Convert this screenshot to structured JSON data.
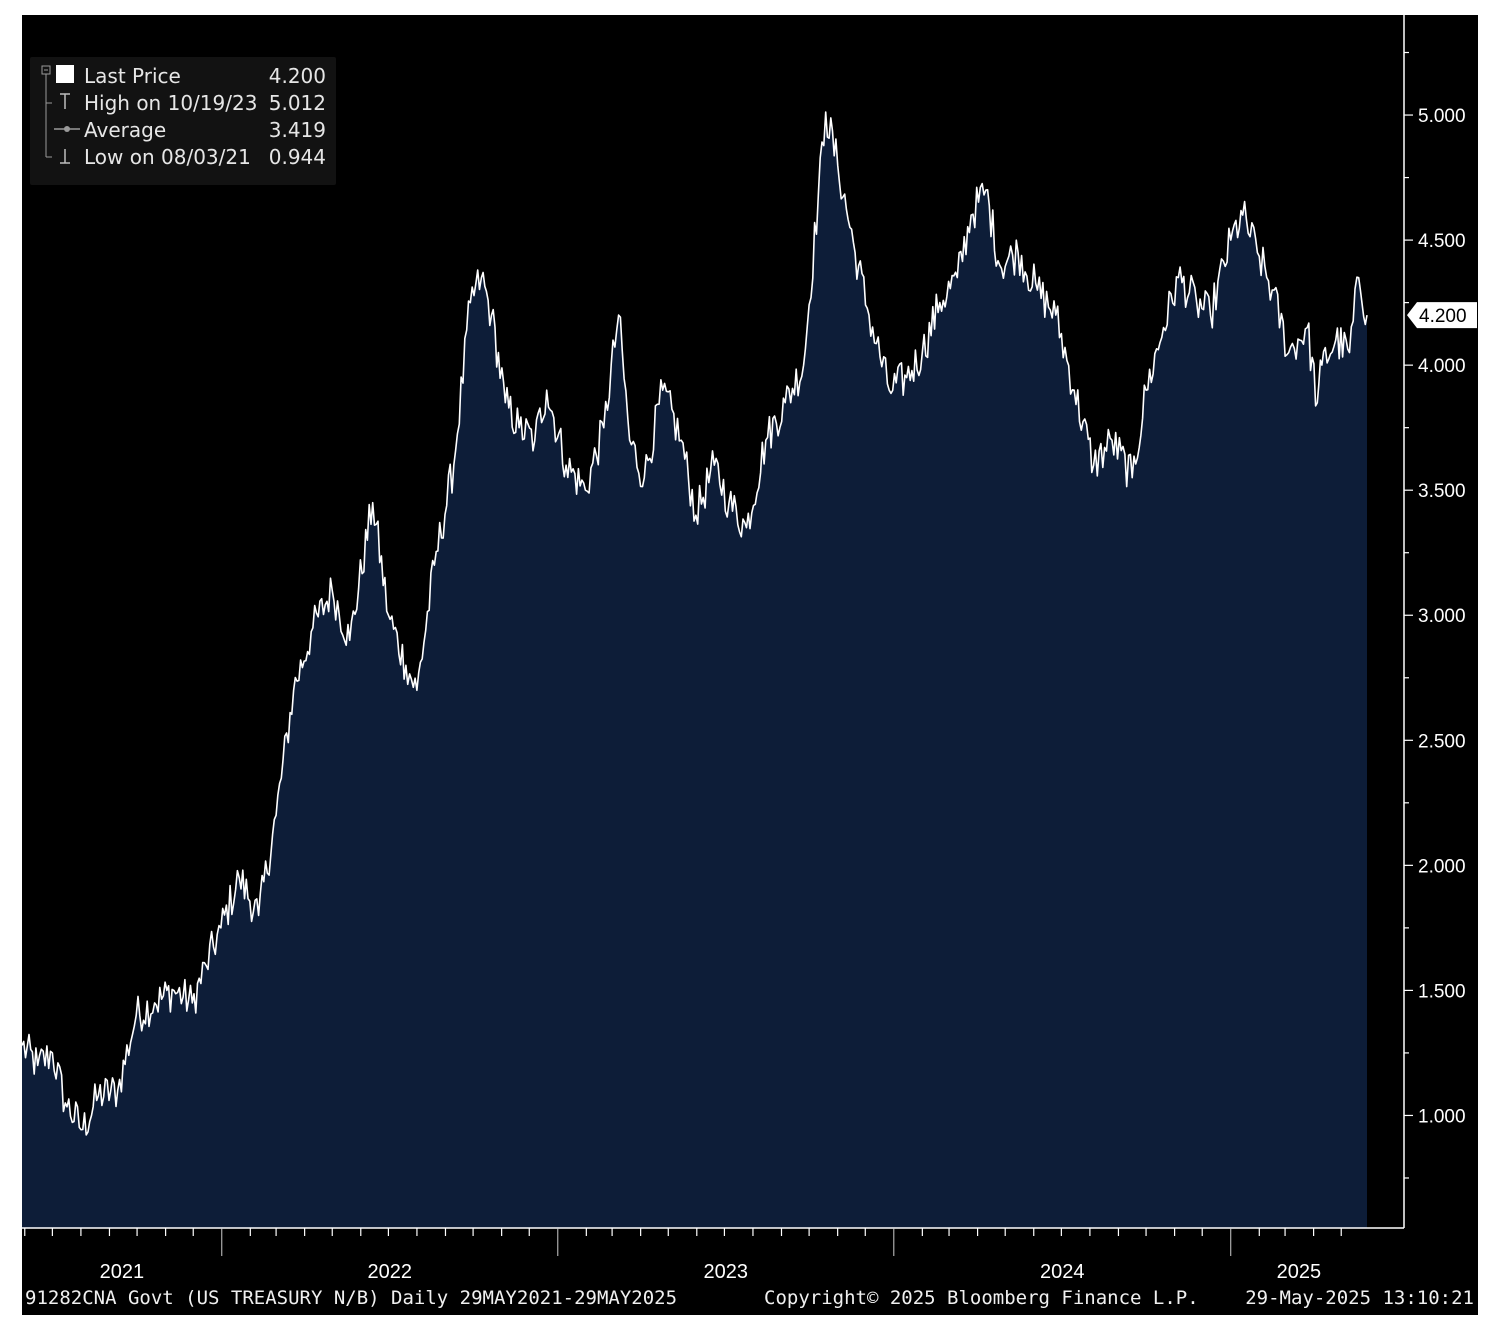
{
  "legend": {
    "items": [
      {
        "label": "Last Price",
        "value": "4.200",
        "icon": "filled-square-icon"
      },
      {
        "label": "High on 10/19/23",
        "value": "5.012",
        "icon": "high-marker-icon"
      },
      {
        "label": "Average",
        "value": "3.419",
        "icon": "average-line-icon"
      },
      {
        "label": "Low on 08/03/21",
        "value": "0.944",
        "icon": "low-marker-icon"
      }
    ]
  },
  "last_price_tag": "4.200",
  "footer": {
    "left": "91282CNA Govt (US TREASURY N/B)  Daily 29MAY2021-29MAY2025",
    "center": "Copyright© 2025 Bloomberg Finance L.P.",
    "right": "29-May-2025 13:10:21"
  },
  "colors": {
    "background": "#000000",
    "area_fill": "#0d1d38",
    "line": "#ffffff",
    "axis": "#ffffff",
    "text": "#ffffff"
  },
  "chart_data": {
    "type": "area",
    "series": [
      {
        "name": "Last Price",
        "x": [
          "2021-05-29",
          "2021-06-15",
          "2021-07-01",
          "2021-07-15",
          "2021-08-03",
          "2021-08-20",
          "2021-09-10",
          "2021-09-30",
          "2021-10-20",
          "2021-11-10",
          "2021-11-30",
          "2021-12-15",
          "2021-12-31",
          "2022-01-20",
          "2022-02-10",
          "2022-03-01",
          "2022-03-20",
          "2022-04-10",
          "2022-05-01",
          "2022-05-20",
          "2022-06-14",
          "2022-07-01",
          "2022-07-20",
          "2022-08-01",
          "2022-08-20",
          "2022-09-10",
          "2022-09-28",
          "2022-10-10",
          "2022-10-21",
          "2022-11-05",
          "2022-11-20",
          "2022-12-07",
          "2022-12-20",
          "2023-01-10",
          "2023-01-31",
          "2023-02-20",
          "2023-03-08",
          "2023-03-20",
          "2023-04-05",
          "2023-04-25",
          "2023-05-15",
          "2023-05-31",
          "2023-06-20",
          "2023-07-06",
          "2023-07-25",
          "2023-08-15",
          "2023-09-05",
          "2023-09-25",
          "2023-10-19",
          "2023-11-01",
          "2023-11-20",
          "2023-12-05",
          "2023-12-27",
          "2024-01-15",
          "2024-02-01",
          "2024-02-20",
          "2024-03-10",
          "2024-03-25",
          "2024-04-10",
          "2024-04-25",
          "2024-05-15",
          "2024-06-05",
          "2024-06-25",
          "2024-07-15",
          "2024-08-05",
          "2024-08-25",
          "2024-09-16",
          "2024-10-01",
          "2024-10-20",
          "2024-11-05",
          "2024-11-25",
          "2024-12-10",
          "2025-01-01",
          "2025-01-14",
          "2025-01-30",
          "2025-02-15",
          "2025-03-05",
          "2025-03-25",
          "2025-04-05",
          "2025-04-10",
          "2025-04-25",
          "2025-05-10",
          "2025-05-20",
          "2025-05-29"
        ],
        "values": [
          1.28,
          1.2,
          1.25,
          1.05,
          0.944,
          1.08,
          1.1,
          1.4,
          1.45,
          1.5,
          1.45,
          1.6,
          1.75,
          1.95,
          1.8,
          2.2,
          2.7,
          2.95,
          3.1,
          2.9,
          3.45,
          3.0,
          2.8,
          2.7,
          3.2,
          3.6,
          4.25,
          4.35,
          4.2,
          3.85,
          3.75,
          3.7,
          3.9,
          3.6,
          3.5,
          3.75,
          4.2,
          3.7,
          3.55,
          3.9,
          3.7,
          3.4,
          3.6,
          3.45,
          3.35,
          3.7,
          3.85,
          4.0,
          5.012,
          4.8,
          4.45,
          4.2,
          3.9,
          3.95,
          4.05,
          4.25,
          4.35,
          4.6,
          4.7,
          4.4,
          4.45,
          4.3,
          4.2,
          3.9,
          3.6,
          3.7,
          3.55,
          3.9,
          4.15,
          4.35,
          4.25,
          4.2,
          4.5,
          4.6,
          4.45,
          4.3,
          4.05,
          4.15,
          3.85,
          4.0,
          4.1,
          4.05,
          4.35,
          4.2
        ]
      }
    ],
    "y_ticks": [
      "1.000",
      "1.500",
      "2.000",
      "2.500",
      "3.000",
      "3.500",
      "4.000",
      "4.500",
      "5.000"
    ],
    "ylim": [
      0.55,
      5.4
    ],
    "x_ticks": [
      "2021",
      "2022",
      "2023",
      "2024",
      "2025"
    ],
    "xlim": [
      "2021-05-29",
      "2025-05-29"
    ],
    "grid": false,
    "legend_position": "top-left",
    "y_axis_position": "right"
  }
}
